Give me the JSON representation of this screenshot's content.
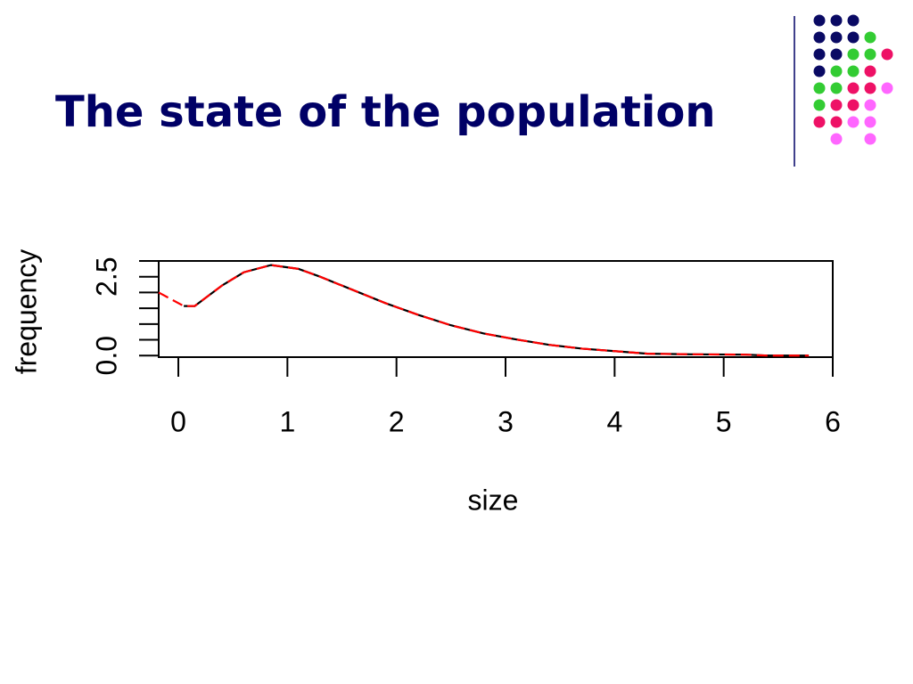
{
  "title": "The state of the population",
  "chart_data": {
    "type": "line",
    "xlabel": "size",
    "ylabel": "frequency",
    "xlim": [
      -0.18,
      6.0
    ],
    "xticks": [
      0,
      1,
      2,
      3,
      4,
      5,
      6
    ],
    "ylim": [
      -0.05,
      3.0
    ],
    "yticks": [
      {
        "value": 0,
        "label": "0.0"
      },
      {
        "value": 2.5,
        "label": "2.5"
      }
    ],
    "yminorticks": [
      0.5,
      1,
      1.5,
      2,
      3
    ],
    "series": [
      {
        "color": "#000000",
        "dash": false,
        "x": [
          0.05,
          0.15,
          0.4,
          0.6,
          0.85,
          1.1,
          1.3,
          1.6,
          1.9,
          2.2,
          2.5,
          2.8,
          3.1,
          3.4,
          3.7,
          4.0,
          4.3,
          4.7,
          5.2,
          5.4,
          5.78
        ],
        "values": [
          1.57,
          1.57,
          2.22,
          2.64,
          2.87,
          2.75,
          2.5,
          2.08,
          1.66,
          1.29,
          0.96,
          0.7,
          0.51,
          0.34,
          0.22,
          0.14,
          0.06,
          0.04,
          0.03,
          0,
          0
        ]
      },
      {
        "color": "#ff0000",
        "dash": true,
        "x": [
          -0.18,
          0.05,
          0.15,
          0.4,
          0.6,
          0.85,
          1.1,
          1.3,
          1.6,
          1.9,
          2.2,
          2.5,
          2.8,
          3.1,
          3.4,
          3.7,
          4.0,
          4.3,
          4.7,
          5.2,
          5.4,
          5.78
        ],
        "values": [
          2.0,
          1.57,
          1.57,
          2.22,
          2.64,
          2.87,
          2.75,
          2.5,
          2.08,
          1.66,
          1.29,
          0.96,
          0.7,
          0.51,
          0.34,
          0.22,
          0.14,
          0.06,
          0.04,
          0.03,
          0,
          0
        ]
      }
    ]
  }
}
